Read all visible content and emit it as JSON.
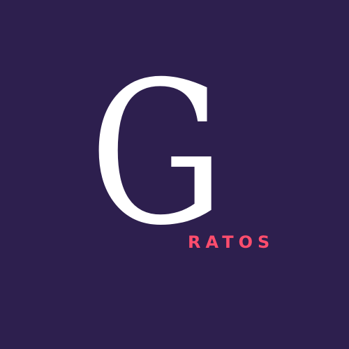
{
  "logo": {
    "big_letter": "G",
    "word": "RATOS"
  },
  "colors": {
    "background": "#2d1f4e",
    "letter": "#ffffff",
    "accent": "#ff4d6d"
  }
}
